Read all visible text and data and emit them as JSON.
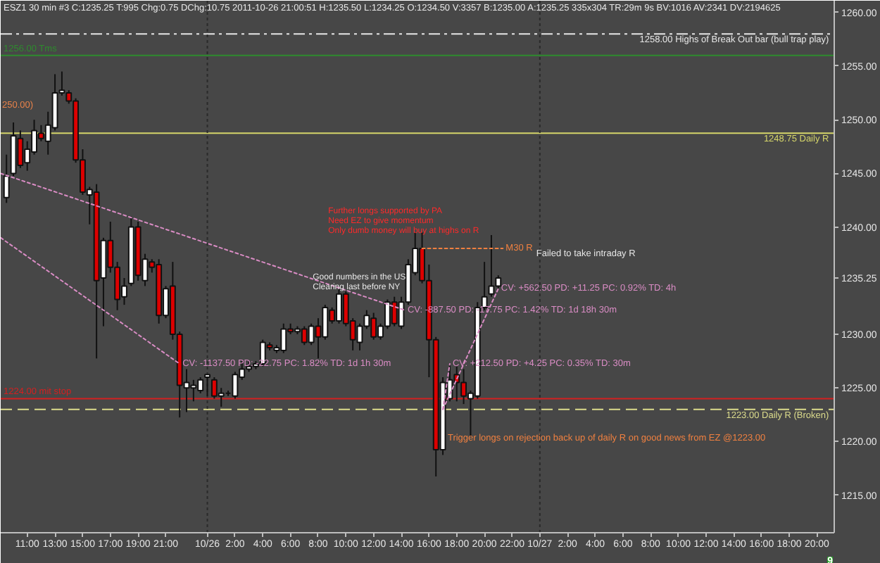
{
  "chart_data": {
    "type": "candlestick",
    "title": "ESZ1  30 min  #3 C:1235.25 T:995 Chg:0.75 DChg:10.75 2011-10-26 21:00:51 H:1235.50 L:1234.25 O:1234.50 V:3357 B:1235.00 A:1235.25 335x304 TR:29m 9s BV:1016 AV:2341 DV:2194625",
    "x": [
      "2011-10-25T09:30",
      "2011-10-25T10:00",
      "2011-10-25T10:30",
      "2011-10-25T11:00",
      "2011-10-25T11:30",
      "2011-10-25T12:00",
      "2011-10-25T12:30",
      "2011-10-25T13:00",
      "2011-10-25T13:30",
      "2011-10-25T14:00",
      "2011-10-25T14:30",
      "2011-10-25T15:00",
      "2011-10-25T15:30",
      "2011-10-25T16:00",
      "2011-10-25T16:30",
      "2011-10-25T17:00",
      "2011-10-25T17:30",
      "2011-10-25T18:00",
      "2011-10-25T18:30",
      "2011-10-25T19:00",
      "2011-10-25T19:30",
      "2011-10-25T20:00",
      "2011-10-25T20:30",
      "2011-10-25T21:00",
      "2011-10-25T21:30",
      "2011-10-25T22:00",
      "2011-10-25T22:30",
      "2011-10-25T23:00",
      "2011-10-25T23:30",
      "2011-10-26T00:00",
      "2011-10-26T00:30",
      "2011-10-26T01:00",
      "2011-10-26T01:30",
      "2011-10-26T02:00",
      "2011-10-26T02:30",
      "2011-10-26T03:00",
      "2011-10-26T03:30",
      "2011-10-26T04:00",
      "2011-10-26T04:30",
      "2011-10-26T05:00",
      "2011-10-26T05:30",
      "2011-10-26T06:00",
      "2011-10-26T06:30",
      "2011-10-26T07:00",
      "2011-10-26T07:30",
      "2011-10-26T08:00",
      "2011-10-26T08:30",
      "2011-10-26T09:00",
      "2011-10-26T09:30",
      "2011-10-26T10:00",
      "2011-10-26T10:30",
      "2011-10-26T11:00",
      "2011-10-26T11:30",
      "2011-10-26T12:00",
      "2011-10-26T12:30",
      "2011-10-26T13:00",
      "2011-10-26T13:30",
      "2011-10-26T14:00",
      "2011-10-26T14:30",
      "2011-10-26T15:00",
      "2011-10-26T15:30",
      "2011-10-26T16:00",
      "2011-10-26T16:30",
      "2011-10-26T17:00",
      "2011-10-26T17:30",
      "2011-10-26T18:00",
      "2011-10-26T18:30",
      "2011-10-26T19:00",
      "2011-10-26T19:30",
      "2011-10-26T20:00",
      "2011-10-26T20:30",
      "2011-10-26T21:00"
    ],
    "ohlc": [
      [
        1242.75,
        1246.75,
        1242.25,
        1244.75
      ],
      [
        1245.0,
        1249.75,
        1244.75,
        1248.5
      ],
      [
        1248.25,
        1249.0,
        1245.5,
        1245.75
      ],
      [
        1246.0,
        1248.0,
        1245.25,
        1247.25
      ],
      [
        1247.0,
        1250.0,
        1246.75,
        1249.0
      ],
      [
        1248.75,
        1249.5,
        1248.0,
        1248.25
      ],
      [
        1248.0,
        1250.75,
        1246.75,
        1249.5
      ],
      [
        1249.25,
        1254.25,
        1249.0,
        1252.5
      ],
      [
        1252.5,
        1254.5,
        1252.25,
        1252.75
      ],
      [
        1252.5,
        1252.75,
        1251.5,
        1251.75
      ],
      [
        1251.75,
        1252.0,
        1246.0,
        1246.25
      ],
      [
        1246.25,
        1247.25,
        1243.0,
        1243.25
      ],
      [
        1243.0,
        1243.75,
        1240.25,
        1243.5
      ],
      [
        1243.25,
        1244.0,
        1227.75,
        1235.0
      ],
      [
        1235.25,
        1239.0,
        1230.75,
        1238.75
      ],
      [
        1238.75,
        1240.5,
        1235.75,
        1236.25
      ],
      [
        1236.25,
        1236.75,
        1232.25,
        1233.25
      ],
      [
        1233.5,
        1235.25,
        1232.75,
        1234.5
      ],
      [
        1234.75,
        1241.0,
        1234.5,
        1240.0
      ],
      [
        1240.0,
        1240.5,
        1235.0,
        1235.5
      ],
      [
        1235.0,
        1237.5,
        1234.5,
        1237.0
      ],
      [
        1236.75,
        1237.0,
        1235.75,
        1236.25
      ],
      [
        1236.5,
        1237.0,
        1231.0,
        1231.75
      ],
      [
        1231.75,
        1234.5,
        1231.5,
        1234.25
      ],
      [
        1234.5,
        1236.75,
        1229.5,
        1230.0
      ],
      [
        1230.0,
        1230.25,
        1222.25,
        1225.25
      ],
      [
        1225.0,
        1226.75,
        1222.75,
        1225.5
      ],
      [
        1225.0,
        1225.75,
        1223.75,
        1225.25
      ],
      [
        1224.75,
        1226.0,
        1224.5,
        1225.75
      ],
      [
        1226.0,
        1226.25,
        1224.25,
        1226.25
      ],
      [
        1225.75,
        1226.0,
        1224.0,
        1224.25
      ],
      [
        1224.25,
        1225.0,
        1223.25,
        1224.5
      ],
      [
        1224.5,
        1224.75,
        1224.25,
        1224.5
      ],
      [
        1224.25,
        1226.5,
        1224.0,
        1226.25
      ],
      [
        1226.0,
        1227.5,
        1225.75,
        1226.75
      ],
      [
        1226.75,
        1227.5,
        1226.5,
        1227.0
      ],
      [
        1227.0,
        1227.5,
        1226.75,
        1227.25
      ],
      [
        1227.25,
        1229.5,
        1227.0,
        1229.25
      ],
      [
        1229.0,
        1229.25,
        1228.5,
        1228.75
      ],
      [
        1228.5,
        1229.0,
        1228.25,
        1228.75
      ],
      [
        1228.5,
        1231.0,
        1228.25,
        1230.5
      ],
      [
        1230.5,
        1231.0,
        1230.0,
        1230.25
      ],
      [
        1230.25,
        1230.75,
        1230.0,
        1230.5
      ],
      [
        1230.5,
        1230.75,
        1229.0,
        1229.25
      ],
      [
        1229.25,
        1231.0,
        1229.0,
        1230.75
      ],
      [
        1230.75,
        1231.5,
        1227.75,
        1229.75
      ],
      [
        1229.75,
        1232.75,
        1229.5,
        1232.5
      ],
      [
        1232.25,
        1232.5,
        1231.0,
        1231.25
      ],
      [
        1231.25,
        1234.25,
        1231.0,
        1233.75
      ],
      [
        1233.75,
        1234.0,
        1230.75,
        1231.0
      ],
      [
        1231.25,
        1231.5,
        1228.5,
        1229.5
      ],
      [
        1229.25,
        1231.0,
        1228.5,
        1230.75
      ],
      [
        1230.75,
        1232.25,
        1230.5,
        1231.75
      ],
      [
        1231.5,
        1232.0,
        1229.5,
        1229.75
      ],
      [
        1229.75,
        1231.0,
        1229.5,
        1230.75
      ],
      [
        1230.75,
        1233.25,
        1230.5,
        1233.0
      ],
      [
        1233.0,
        1233.5,
        1230.75,
        1231.0
      ],
      [
        1230.75,
        1233.5,
        1230.5,
        1233.0
      ],
      [
        1233.0,
        1237.0,
        1232.75,
        1236.5
      ],
      [
        1235.75,
        1239.5,
        1235.5,
        1238.0
      ],
      [
        1238.0,
        1239.5,
        1234.75,
        1235.0
      ],
      [
        1235.0,
        1236.5,
        1226.0,
        1229.5
      ],
      [
        1229.5,
        1229.75,
        1216.75,
        1219.25
      ],
      [
        1219.25,
        1226.0,
        1218.75,
        1225.5
      ],
      [
        1224.0,
        1227.25,
        1223.75,
        1225.75
      ],
      [
        1226.25,
        1227.0,
        1223.75,
        1225.5
      ],
      [
        1225.5,
        1226.75,
        1223.5,
        1224.25
      ],
      [
        1224.0,
        1224.75,
        1220.5,
        1224.5
      ],
      [
        1224.25,
        1233.0,
        1224.0,
        1232.5
      ],
      [
        1232.5,
        1236.75,
        1232.25,
        1233.5
      ],
      [
        1233.75,
        1239.25,
        1233.5,
        1234.5
      ],
      [
        1234.5,
        1235.5,
        1234.25,
        1235.25
      ]
    ],
    "colors": [
      "#ffffff",
      "#ffffff",
      "#dd0000",
      "#ffffff",
      "#ffffff",
      "#dd0000",
      "#ffffff",
      "#ffffff",
      "#ffffff",
      "#dd0000",
      "#dd0000",
      "#dd0000",
      "#ffffff",
      "#dd0000",
      "#ffffff",
      "#dd0000",
      "#dd0000",
      "#ffffff",
      "#ffffff",
      "#dd0000",
      "#ffffff",
      "#dd0000",
      "#dd0000",
      "#ffffff",
      "#dd0000",
      "#dd0000",
      "#ffffff",
      "#ffffff",
      "#ffffff",
      "#ffffff",
      "#dd0000",
      "#ffffff",
      "#111111",
      "#ffffff",
      "#ffffff",
      "#ffffff",
      "#ffffff",
      "#ffffff",
      "#dd0000",
      "#ffffff",
      "#ffffff",
      "#dd0000",
      "#ffffff",
      "#dd0000",
      "#ffffff",
      "#dd0000",
      "#ffffff",
      "#dd0000",
      "#ffffff",
      "#dd0000",
      "#dd0000",
      "#ffffff",
      "#ffffff",
      "#dd0000",
      "#ffffff",
      "#ffffff",
      "#dd0000",
      "#ffffff",
      "#ffffff",
      "#ffffff",
      "#dd0000",
      "#dd0000",
      "#dd0000",
      "#ffffff",
      "#ffffff",
      "#dd0000",
      "#dd0000",
      "#ffffff",
      "#ffffff",
      "#ffffff",
      "#ffffff",
      "#ffffff"
    ],
    "series": [
      {
        "type": "line",
        "x": [
          "2011-10-25T09:05",
          "2011-10-26T14:15"
        ],
        "values": [
          1245.0,
          1232.25
        ],
        "color": "#d98cc4",
        "line_style": "dotted"
      },
      {
        "type": "line",
        "x": [
          "2011-10-25T09:05",
          "2011-10-25T22:00"
        ],
        "values": [
          1239.0,
          1227.25
        ],
        "color": "#d98cc4",
        "line_style": "dotted"
      },
      {
        "type": "line",
        "x": [
          "2011-10-26T17:00",
          "2011-10-26T17:30"
        ],
        "values": [
          1223.0,
          1227.25
        ],
        "color": "#d98cc4",
        "line_style": "dotted"
      },
      {
        "type": "line",
        "x": [
          "2011-10-26T17:00",
          "2011-10-26T21:00"
        ],
        "values": [
          1223.0,
          1234.25
        ],
        "color": "#d98cc4",
        "line_style": "dotted"
      },
      {
        "type": "line",
        "x": [
          "2011-10-26T15:30",
          "2011-10-26T21:20"
        ],
        "values": [
          1238.0,
          1238.0
        ],
        "color": "#f08040",
        "line_style": "dotted"
      }
    ],
    "ref_lines": [
      {
        "axis": "y",
        "value": 1258.0,
        "color": "#e6e6e6",
        "line_style": "dashdot"
      },
      {
        "axis": "y",
        "value": 1256.0,
        "color": "#2e8b2e",
        "line_style": "solid"
      },
      {
        "axis": "y",
        "value": 1248.75,
        "color": "#d6d66a",
        "line_style": "solid"
      },
      {
        "axis": "y",
        "value": 1224.0,
        "color": "#d42020",
        "line_style": "solid"
      },
      {
        "axis": "y",
        "value": 1223.0,
        "color": "#dcdc8c",
        "line_style": "dashed"
      },
      {
        "axis": "x",
        "value": "2011-10-26T00:00",
        "color": "#2a2a2a",
        "line_style": "dotted"
      },
      {
        "axis": "x",
        "value": "2011-10-27T00:00",
        "color": "#2a2a2a",
        "line_style": "dotted"
      }
    ],
    "annotations": [
      "250.00)",
      {
        "text": "1256.00 Tms",
        "x": "2011-10-25T09:05",
        "y": 1256.0
      },
      {
        "text": "1224.00  mit stop",
        "x": "2011-10-25T09:05",
        "y": 1224.0
      },
      {
        "text": "1258.00  Highs of Break Out bar (bull trap play)",
        "x": "2011-10-27T21:15",
        "y": 1258.0
      },
      {
        "text": "1248.75  Daily R",
        "x": "2011-10-27T21:15",
        "y": 1248.75
      },
      {
        "text": "1223.00  Daily R (Broken)",
        "x": "2011-10-27T21:15",
        "y": 1223.0
      },
      "Further longs supported by PA\nNeed EZ to give momentum\nOnly dumb money will buy at highs on R",
      "Good numbers in the US\nClearing last before NY",
      {
        "text": "M30 R",
        "x": "2011-10-26T21:20",
        "y": 1238.0
      },
      "Failed to take intraday R",
      {
        "text": "CV: +562.50  PD: +11.25  PC: 0.92%  TD: 4h",
        "x": "2011-10-26T21:00",
        "y": 1234.25
      },
      {
        "text": "CV: -887.50  PD: -17.75  PC: 1.42%  TD: 1d 18h 30m",
        "x": "2011-10-26T14:15",
        "y": 1232.25
      },
      {
        "text": "CV: -1137.50  PD: -22.75  PC: 1.82%  TD: 1d 1h 30m",
        "x": "2011-10-25T22:00",
        "y": 1227.25
      },
      {
        "text": "CV: +212.50  PD: +4.25  PC: 0.35%  TD: 30m",
        "x": "2011-10-26T17:30",
        "y": 1227.25
      },
      "Trigger longs on rejection back up of daily R on good news from EZ @1223.00",
      "9"
    ],
    "xlim": [
      "2011-10-25T09:05",
      "2011-10-27T21:15"
    ],
    "ylim": [
      1211.5,
      1261.1
    ],
    "xticks": [
      {
        "value": "2011-10-25T11:00",
        "label": "11:00"
      },
      {
        "value": "2011-10-25T13:00",
        "label": "13:00"
      },
      {
        "value": "2011-10-25T15:00",
        "label": "15:00"
      },
      {
        "value": "2011-10-25T17:00",
        "label": "17:00"
      },
      {
        "value": "2011-10-25T19:00",
        "label": "19:00"
      },
      {
        "value": "2011-10-25T21:00",
        "label": "21:00"
      },
      {
        "value": "2011-10-26T00:00",
        "label": "10/26"
      },
      {
        "value": "2011-10-26T02:00",
        "label": "2:00"
      },
      {
        "value": "2011-10-26T04:00",
        "label": "4:00"
      },
      {
        "value": "2011-10-26T06:00",
        "label": "6:00"
      },
      {
        "value": "2011-10-26T08:00",
        "label": "8:00"
      },
      {
        "value": "2011-10-26T10:00",
        "label": "10:00"
      },
      {
        "value": "2011-10-26T12:00",
        "label": "12:00"
      },
      {
        "value": "2011-10-26T14:00",
        "label": "14:00"
      },
      {
        "value": "2011-10-26T16:00",
        "label": "16:00"
      },
      {
        "value": "2011-10-26T18:00",
        "label": "18:00"
      },
      {
        "value": "2011-10-26T20:00",
        "label": "20:00"
      },
      {
        "value": "2011-10-26T22:00",
        "label": "22:00"
      },
      {
        "value": "2011-10-27T00:00",
        "label": "10/27"
      },
      {
        "value": "2011-10-27T02:00",
        "label": "2:00"
      },
      {
        "value": "2011-10-27T04:00",
        "label": "4:00"
      },
      {
        "value": "2011-10-27T06:00",
        "label": "6:00"
      },
      {
        "value": "2011-10-27T08:00",
        "label": "8:00"
      },
      {
        "value": "2011-10-27T10:00",
        "label": "10:00"
      },
      {
        "value": "2011-10-27T12:00",
        "label": "12:00"
      },
      {
        "value": "2011-10-27T14:00",
        "label": "14:00"
      },
      {
        "value": "2011-10-27T16:00",
        "label": "16:00"
      },
      {
        "value": "2011-10-27T18:00",
        "label": "18:00"
      },
      {
        "value": "2011-10-27T20:00",
        "label": "20:00"
      }
    ],
    "yticks": [
      {
        "value": 1215,
        "label": "1215.00"
      },
      {
        "value": 1220,
        "label": "1220.00"
      },
      {
        "value": 1225,
        "label": "1225.00"
      },
      {
        "value": 1230,
        "label": "1230.00"
      },
      1235.25,
      {
        "value": 1240,
        "label": "1240.00"
      },
      {
        "value": 1245,
        "label": "1245.00"
      },
      {
        "value": 1250,
        "label": "1250.00"
      },
      {
        "value": 1255,
        "label": "1255.00"
      },
      {
        "value": 1260,
        "label": "1260.00"
      }
    ],
    "grid": false
  }
}
